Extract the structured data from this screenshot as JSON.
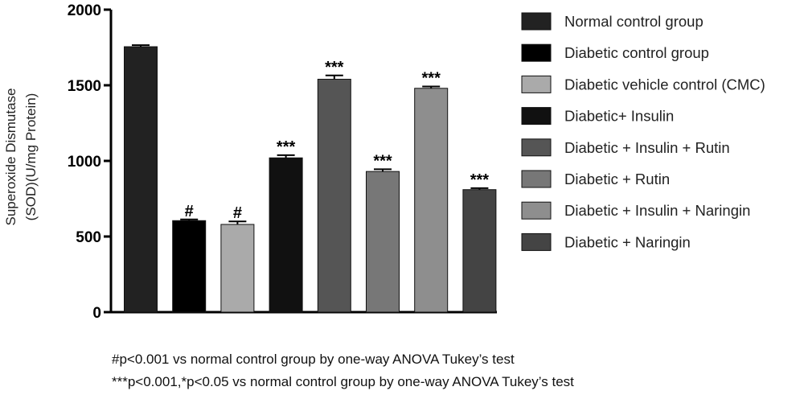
{
  "chart_data": {
    "type": "bar",
    "ylabel_line1": "Superoxide Dismutase",
    "ylabel_line2": "(SOD)(U/mg Protein)",
    "ylim": [
      0,
      2000
    ],
    "yticks": [
      "0",
      "500",
      "1000",
      "1500",
      "2000"
    ],
    "ytick_values": [
      0,
      500,
      1000,
      1500,
      2000
    ],
    "categories": [
      "Normal control group",
      "Diabetic control group",
      "Diabetic vehicle control (CMC)",
      "Diabetic+ Insulin",
      "Diabetic + Insulin + Rutin",
      "Diabetic + Rutin",
      "Diabetic + Insulin + Naringin",
      "Diabetic + Naringin"
    ],
    "values": [
      1755,
      605,
      580,
      1020,
      1540,
      930,
      1480,
      810
    ],
    "errors": [
      10,
      8,
      20,
      18,
      25,
      15,
      12,
      10
    ],
    "significance": [
      "",
      "#",
      "#",
      "***",
      "***",
      "***",
      "***",
      "***"
    ],
    "colors": [
      "#222222",
      "#000000",
      "#aaaaaa",
      "#111111",
      "#555555",
      "#777777",
      "#8e8e8e",
      "#444444"
    ],
    "grid": false,
    "legend_position": "right"
  },
  "footnotes": [
    "#p<0.001 vs normal control group by one-way ANOVA Tukey’s test",
    "***p<0.001,*p<0.05 vs normal control group by one-way ANOVA Tukey’s test"
  ]
}
